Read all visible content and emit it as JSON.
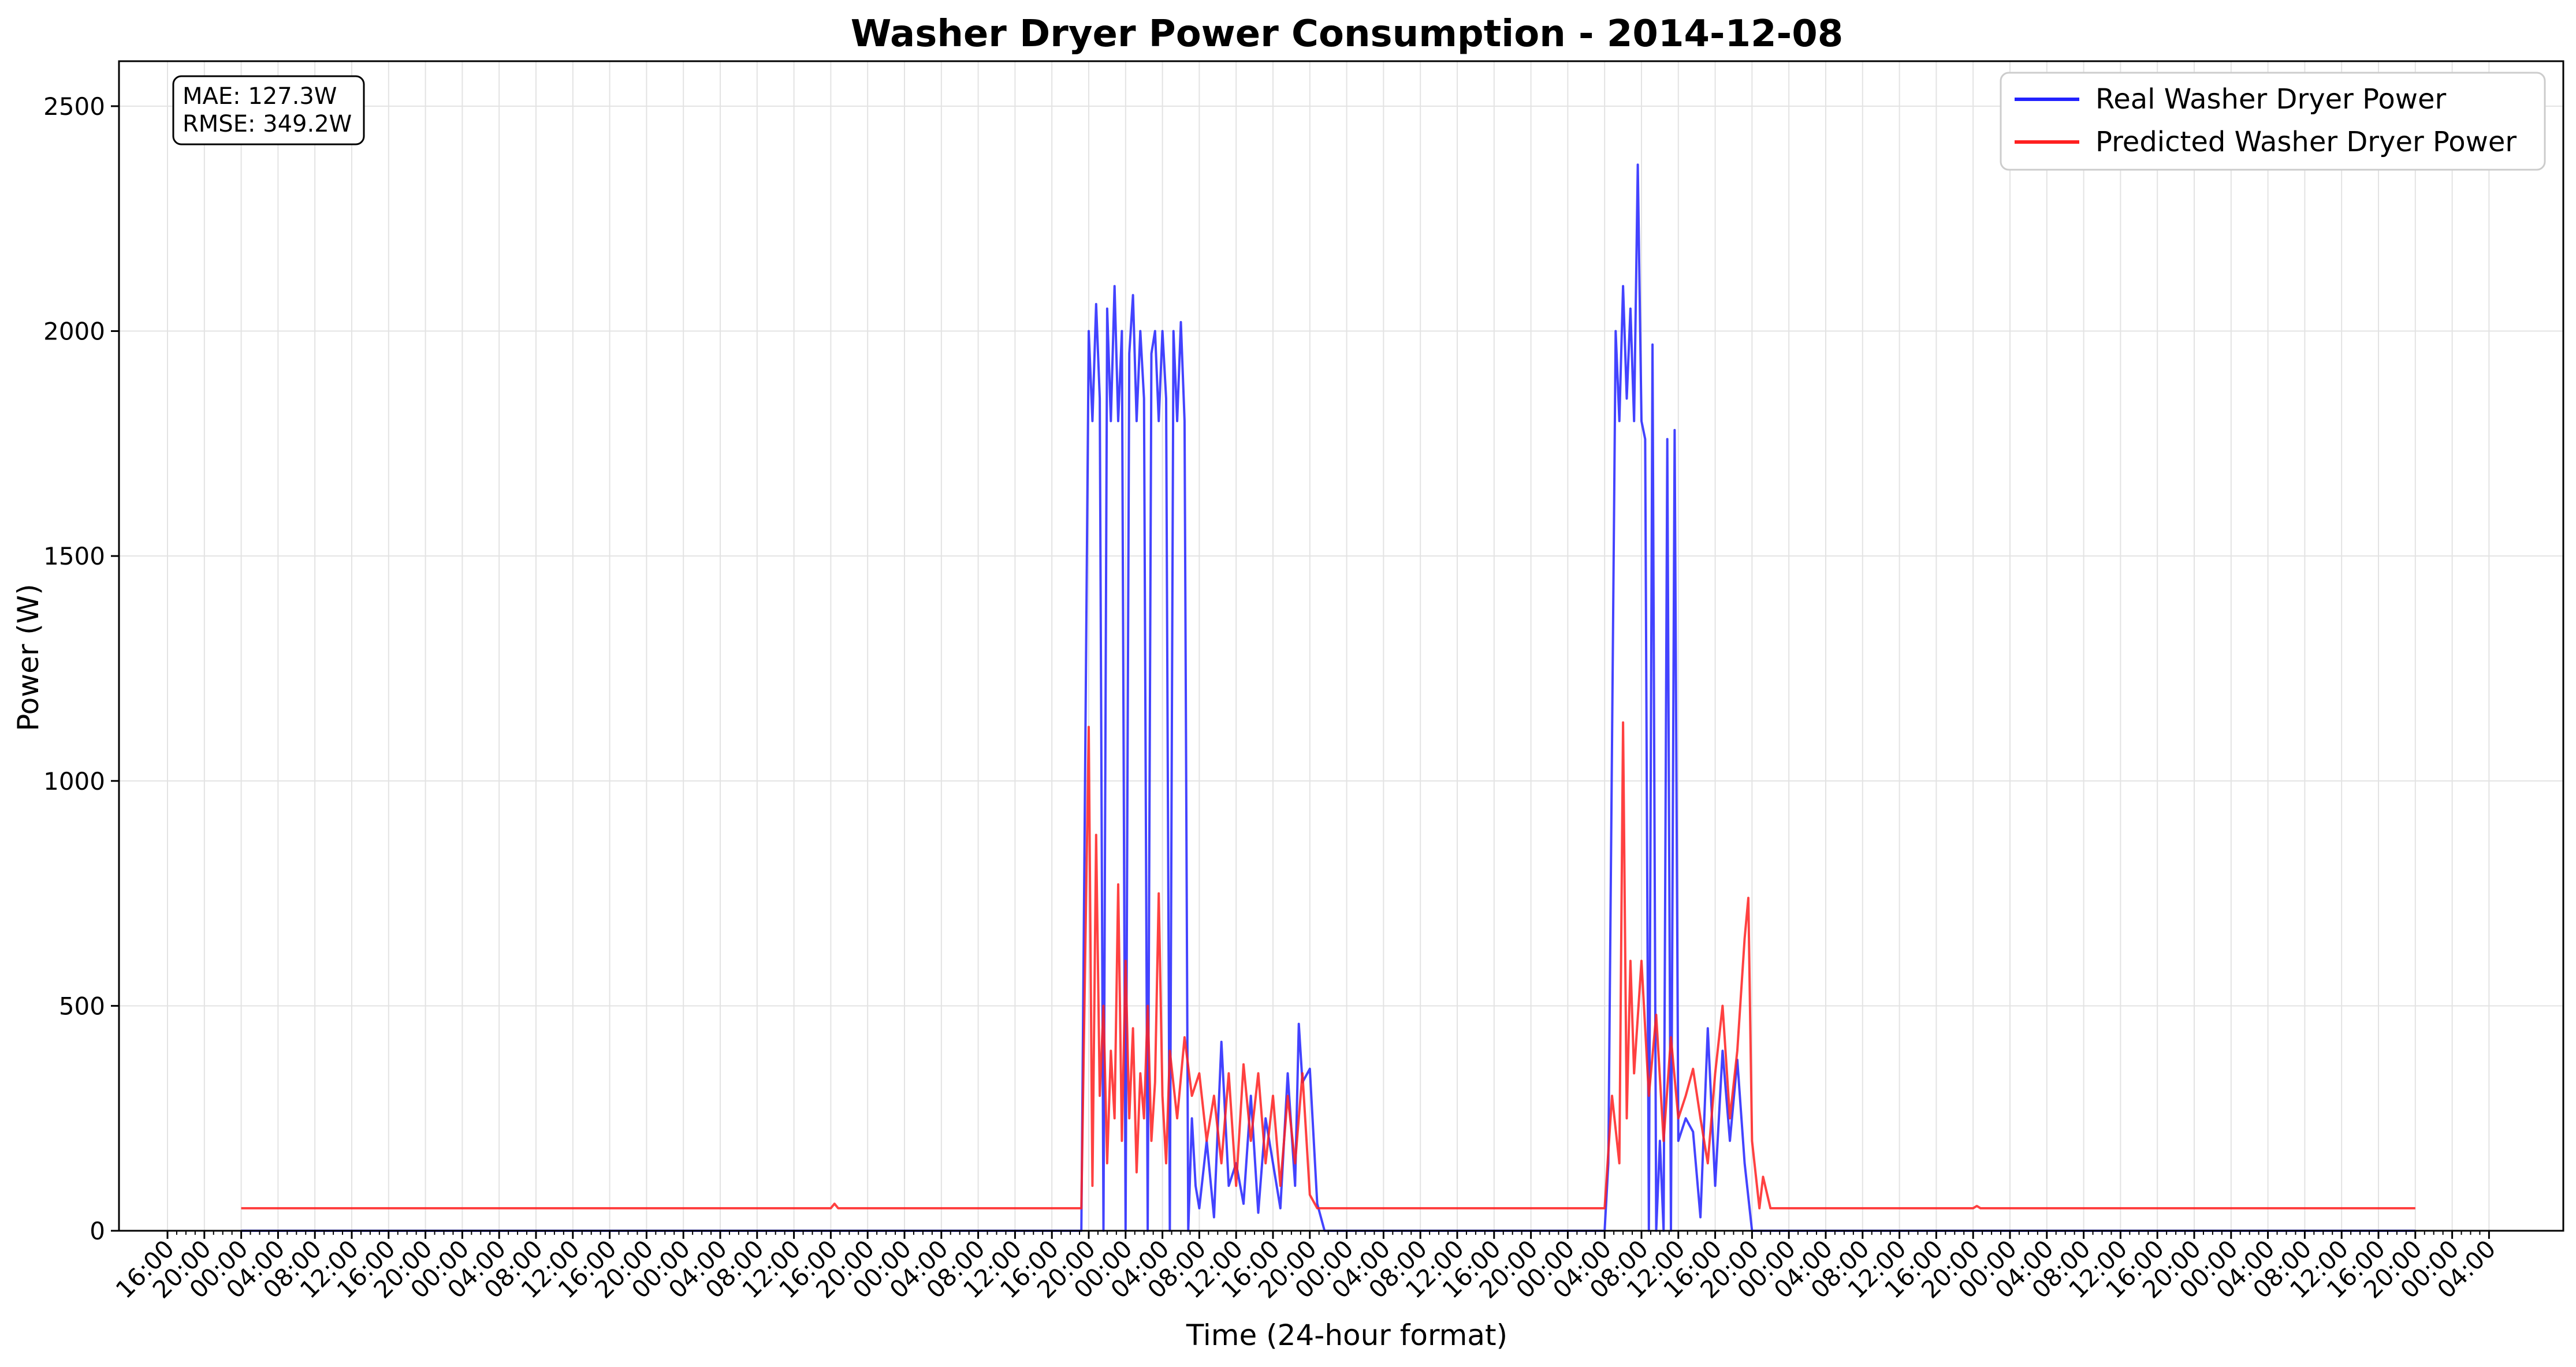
{
  "chart_data": {
    "type": "line",
    "title": "Washer Dryer Power Consumption - 2014-12-08",
    "xlabel": "Time (24-hour format)",
    "ylabel": "Power (W)",
    "ylim": [
      0,
      2600
    ],
    "yticks": [
      0,
      500,
      1000,
      1500,
      2000,
      2500
    ],
    "grid": true,
    "legend_position": "top-right",
    "xtick_labels": [
      "16:00",
      "20:00",
      "00:00",
      "04:00",
      "08:00",
      "12:00",
      "16:00",
      "20:00",
      "00:00",
      "04:00",
      "08:00",
      "12:00",
      "16:00",
      "20:00",
      "00:00",
      "04:00",
      "08:00",
      "12:00",
      "16:00",
      "20:00",
      "00:00",
      "04:00",
      "08:00",
      "12:00",
      "16:00",
      "20:00",
      "00:00",
      "04:00",
      "08:00",
      "12:00",
      "16:00",
      "20:00",
      "00:00",
      "04:00",
      "08:00",
      "12:00",
      "16:00",
      "20:00",
      "00:00",
      "04:00",
      "08:00",
      "12:00",
      "16:00",
      "20:00",
      "00:00",
      "04:00",
      "08:00",
      "12:00",
      "16:00",
      "20:00",
      "00:00",
      "04:00",
      "08:00",
      "12:00",
      "16:00",
      "20:00",
      "00:00",
      "04:00",
      "08:00",
      "12:00",
      "16:00",
      "20:00",
      "00:00",
      "04:00"
    ],
    "x_index_range": [
      0,
      63
    ],
    "metrics": [
      "MAE: 127.3W",
      "RMSE: 349.2W"
    ],
    "series": [
      {
        "name": "Real Washer Dryer Power",
        "color": "#2222ff",
        "points": [
          [
            2,
            0
          ],
          [
            24.8,
            0
          ],
          [
            25,
            2000
          ],
          [
            25.1,
            1800
          ],
          [
            25.2,
            2060
          ],
          [
            25.3,
            1850
          ],
          [
            25.4,
            0
          ],
          [
            25.5,
            2050
          ],
          [
            25.6,
            1800
          ],
          [
            25.7,
            2100
          ],
          [
            25.8,
            1800
          ],
          [
            25.9,
            2000
          ],
          [
            26.0,
            0
          ],
          [
            26.1,
            1950
          ],
          [
            26.2,
            2080
          ],
          [
            26.3,
            1800
          ],
          [
            26.4,
            2000
          ],
          [
            26.5,
            1850
          ],
          [
            26.6,
            0
          ],
          [
            26.7,
            1950
          ],
          [
            26.8,
            2000
          ],
          [
            26.9,
            1800
          ],
          [
            27.0,
            2000
          ],
          [
            27.1,
            1850
          ],
          [
            27.2,
            0
          ],
          [
            27.3,
            2000
          ],
          [
            27.4,
            1800
          ],
          [
            27.5,
            2020
          ],
          [
            27.6,
            1800
          ],
          [
            27.7,
            0
          ],
          [
            27.8,
            250
          ],
          [
            27.9,
            100
          ],
          [
            28.0,
            50
          ],
          [
            28.2,
            200
          ],
          [
            28.4,
            30
          ],
          [
            28.6,
            420
          ],
          [
            28.8,
            100
          ],
          [
            29.0,
            150
          ],
          [
            29.2,
            60
          ],
          [
            29.4,
            300
          ],
          [
            29.6,
            40
          ],
          [
            29.8,
            250
          ],
          [
            30.0,
            150
          ],
          [
            30.2,
            50
          ],
          [
            30.4,
            350
          ],
          [
            30.6,
            100
          ],
          [
            30.7,
            460
          ],
          [
            30.8,
            330
          ],
          [
            31.0,
            360
          ],
          [
            31.2,
            60
          ],
          [
            31.4,
            0
          ],
          [
            39,
            0
          ],
          [
            39.1,
            150
          ],
          [
            39.3,
            2000
          ],
          [
            39.4,
            1800
          ],
          [
            39.5,
            2100
          ],
          [
            39.6,
            1850
          ],
          [
            39.7,
            2050
          ],
          [
            39.8,
            1800
          ],
          [
            39.9,
            2370
          ],
          [
            40.0,
            1800
          ],
          [
            40.1,
            1760
          ],
          [
            40.2,
            0
          ],
          [
            40.3,
            1970
          ],
          [
            40.4,
            0
          ],
          [
            40.5,
            200
          ],
          [
            40.6,
            0
          ],
          [
            40.7,
            1760
          ],
          [
            40.8,
            0
          ],
          [
            40.9,
            1780
          ],
          [
            41.0,
            200
          ],
          [
            41.2,
            250
          ],
          [
            41.4,
            220
          ],
          [
            41.6,
            30
          ],
          [
            41.8,
            450
          ],
          [
            42.0,
            100
          ],
          [
            42.2,
            400
          ],
          [
            42.4,
            200
          ],
          [
            42.6,
            380
          ],
          [
            42.8,
            150
          ],
          [
            43.0,
            0
          ],
          [
            61,
            0
          ]
        ]
      },
      {
        "name": "Predicted Washer Dryer Power",
        "color": "#ff2020",
        "points": [
          [
            2,
            50
          ],
          [
            18,
            50
          ],
          [
            18.1,
            60
          ],
          [
            18.2,
            50
          ],
          [
            24.8,
            50
          ],
          [
            25.0,
            1120
          ],
          [
            25.1,
            100
          ],
          [
            25.2,
            880
          ],
          [
            25.3,
            300
          ],
          [
            25.4,
            500
          ],
          [
            25.5,
            150
          ],
          [
            25.6,
            400
          ],
          [
            25.7,
            250
          ],
          [
            25.8,
            770
          ],
          [
            25.9,
            200
          ],
          [
            26.0,
            600
          ],
          [
            26.1,
            250
          ],
          [
            26.2,
            450
          ],
          [
            26.3,
            130
          ],
          [
            26.4,
            350
          ],
          [
            26.5,
            250
          ],
          [
            26.6,
            500
          ],
          [
            26.7,
            200
          ],
          [
            26.8,
            330
          ],
          [
            26.9,
            750
          ],
          [
            27.0,
            300
          ],
          [
            27.1,
            150
          ],
          [
            27.2,
            400
          ],
          [
            27.4,
            250
          ],
          [
            27.6,
            430
          ],
          [
            27.8,
            300
          ],
          [
            28.0,
            350
          ],
          [
            28.2,
            200
          ],
          [
            28.4,
            300
          ],
          [
            28.6,
            150
          ],
          [
            28.8,
            350
          ],
          [
            29.0,
            100
          ],
          [
            29.2,
            370
          ],
          [
            29.4,
            200
          ],
          [
            29.6,
            350
          ],
          [
            29.8,
            150
          ],
          [
            30.0,
            300
          ],
          [
            30.2,
            100
          ],
          [
            30.4,
            300
          ],
          [
            30.6,
            150
          ],
          [
            30.8,
            350
          ],
          [
            31.0,
            80
          ],
          [
            31.2,
            50
          ],
          [
            39.0,
            50
          ],
          [
            39.2,
            300
          ],
          [
            39.4,
            150
          ],
          [
            39.5,
            1130
          ],
          [
            39.6,
            250
          ],
          [
            39.7,
            600
          ],
          [
            39.8,
            350
          ],
          [
            40.0,
            600
          ],
          [
            40.2,
            300
          ],
          [
            40.4,
            480
          ],
          [
            40.6,
            200
          ],
          [
            40.8,
            430
          ],
          [
            41.0,
            250
          ],
          [
            41.2,
            300
          ],
          [
            41.4,
            360
          ],
          [
            41.6,
            250
          ],
          [
            41.8,
            150
          ],
          [
            42.0,
            350
          ],
          [
            42.2,
            500
          ],
          [
            42.4,
            250
          ],
          [
            42.6,
            400
          ],
          [
            42.8,
            650
          ],
          [
            42.9,
            740
          ],
          [
            43.0,
            200
          ],
          [
            43.2,
            50
          ],
          [
            43.3,
            120
          ],
          [
            43.5,
            50
          ],
          [
            49.0,
            50
          ],
          [
            49.1,
            55
          ],
          [
            49.2,
            50
          ],
          [
            61,
            50
          ]
        ]
      }
    ]
  }
}
